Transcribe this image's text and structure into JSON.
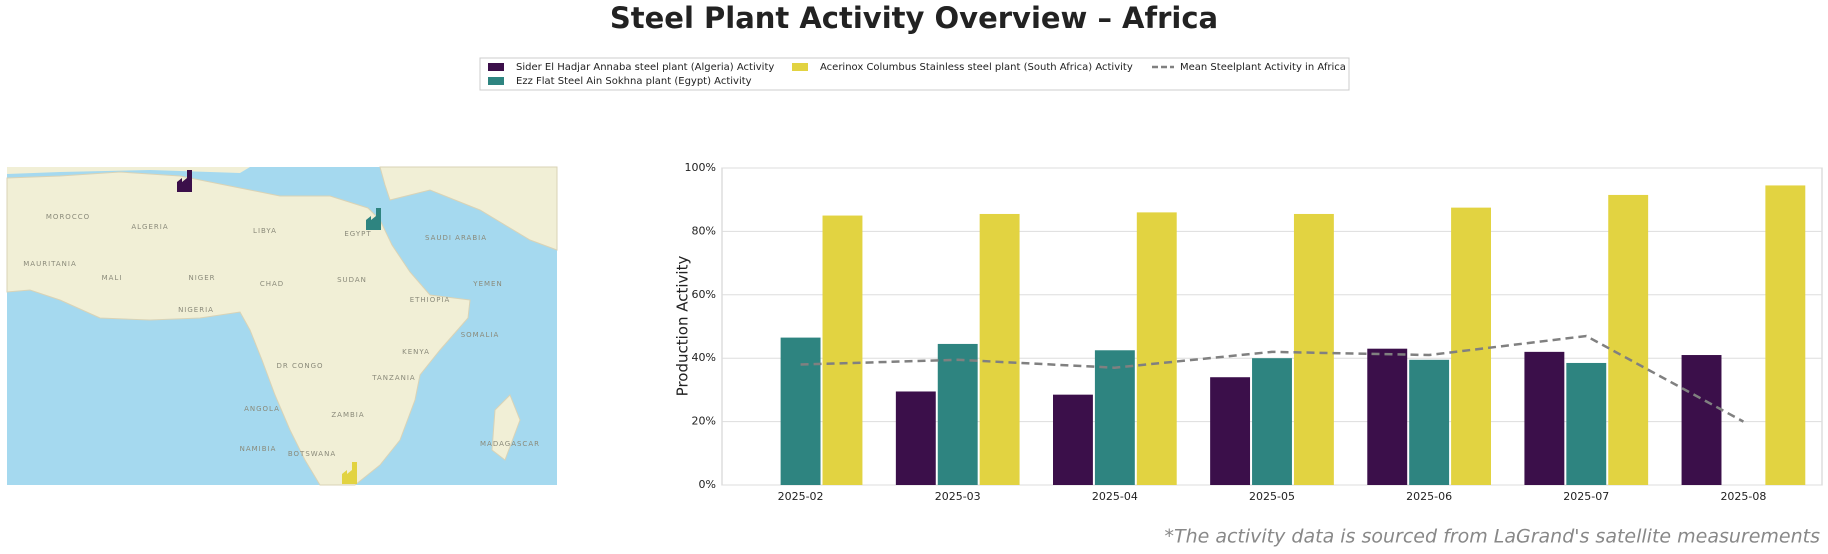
{
  "chart_data": {
    "type": "bar",
    "title": "Steel Plant Activity Overview – Africa",
    "ylabel": "Production Activity",
    "categories": [
      "2025-02",
      "2025-03",
      "2025-04",
      "2025-05",
      "2025-06",
      "2025-07",
      "2025-08"
    ],
    "series": [
      {
        "name": "Sider El Hadjar Annaba steel plant (Algeria) Activity",
        "color": "#3b0f4a",
        "values": [
          null,
          29.5,
          28.5,
          34,
          43,
          42,
          41
        ]
      },
      {
        "name": "Ezz Flat Steel Ain Sokhna plant (Egypt) Activity",
        "color": "#2e8480",
        "values": [
          46.5,
          44.5,
          42.5,
          40,
          39.5,
          38.5,
          null
        ]
      },
      {
        "name": "Acerinox Columbus Stainless steel plant (South Africa) Activity",
        "color": "#e2d341",
        "values": [
          85,
          85.5,
          86,
          85.5,
          87.5,
          91.5,
          94.5
        ]
      },
      {
        "name": "Mean Steelplant Activity in Africa",
        "color": "#808080",
        "type": "line",
        "dashed": true,
        "values": [
          38,
          39.5,
          37,
          42,
          41,
          47,
          20
        ]
      }
    ],
    "ylim": [
      0,
      100
    ],
    "yticks": [
      {
        "value": 0,
        "label": "0%"
      },
      {
        "value": 20,
        "label": "20%"
      },
      {
        "value": 40,
        "label": "40%"
      },
      {
        "value": 60,
        "label": "60%"
      },
      {
        "value": 80,
        "label": "80%"
      },
      {
        "value": 100,
        "label": "100%"
      }
    ],
    "grid": true,
    "legend": "top",
    "footnote": "*The activity data is sourced from LaGrand's satellite measurements"
  },
  "map": {
    "labels": [
      "MOROCCO",
      "ALGERIA",
      "LIBYA",
      "EGYPT",
      "MAURITANIA",
      "MALI",
      "NIGER",
      "CHAD",
      "SUDAN",
      "NIGERIA",
      "ETHIOPIA",
      "SOMALIA",
      "KENYA",
      "TANZANIA",
      "DR CONGO",
      "ANGOLA",
      "ZAMBIA",
      "NAMIBIA",
      "BOTSWANA",
      "MADAGASCAR",
      "SAUDI ARABIA",
      "YEMEN"
    ]
  }
}
